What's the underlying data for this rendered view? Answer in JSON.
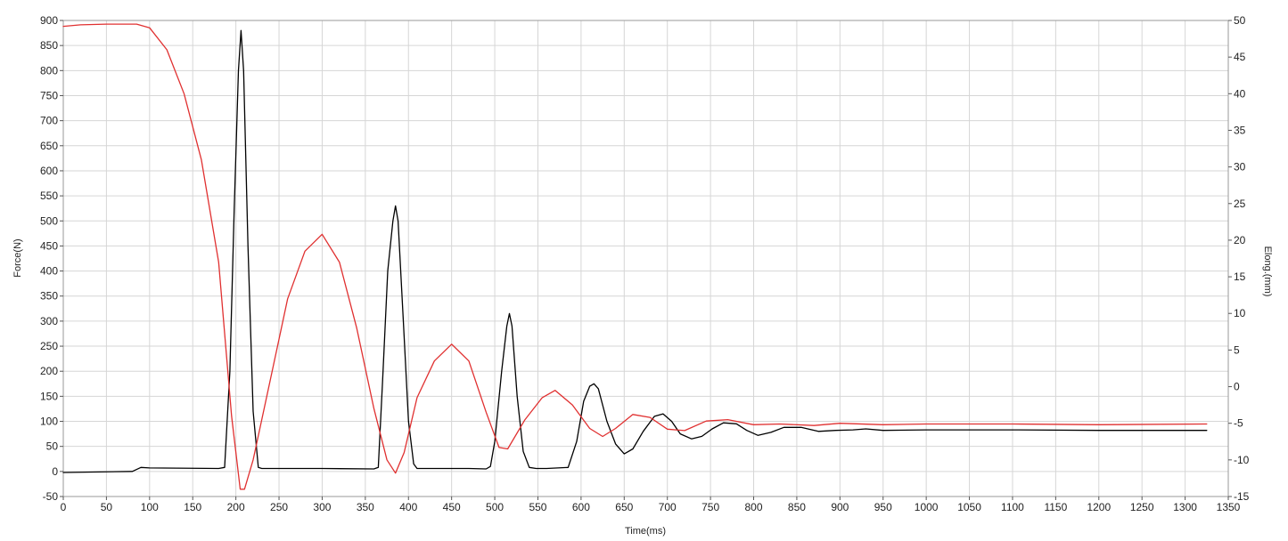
{
  "chart_data": {
    "type": "line",
    "title": "",
    "xlabel": "Time(ms)",
    "ylabel": "Force(N)",
    "y2label": "Elong.(mm)",
    "xlim": [
      0,
      1350
    ],
    "ylim": [
      -50,
      900
    ],
    "y2lim": [
      -15,
      50
    ],
    "x_ticks": [
      0,
      50,
      100,
      150,
      200,
      250,
      300,
      350,
      400,
      450,
      500,
      550,
      600,
      650,
      700,
      750,
      800,
      850,
      900,
      950,
      1000,
      1050,
      1100,
      1150,
      1200,
      1250,
      1300,
      1350
    ],
    "y_ticks": [
      -50,
      0,
      50,
      100,
      150,
      200,
      250,
      300,
      350,
      400,
      450,
      500,
      550,
      600,
      650,
      700,
      750,
      800,
      850,
      900
    ],
    "y2_ticks": [
      -15,
      -10,
      -5,
      0,
      5,
      10,
      15,
      20,
      25,
      30,
      35,
      40,
      45,
      50
    ],
    "grid": true,
    "legend": "none",
    "series": [
      {
        "axis": "left",
        "color": "#000000",
        "x": [
          0,
          80,
          90,
          100,
          180,
          187,
          193,
          198,
          203,
          206,
          209,
          214,
          220,
          226,
          230,
          300,
          360,
          365,
          370,
          376,
          382,
          385,
          388,
          394,
          400,
          406,
          410,
          470,
          490,
          495,
          500,
          508,
          514,
          517,
          520,
          526,
          533,
          540,
          548,
          560,
          585,
          595,
          603,
          610,
          615,
          620,
          630,
          640,
          650,
          660,
          672,
          685,
          695,
          705,
          715,
          728,
          740,
          752,
          765,
          780,
          792,
          805,
          820,
          835,
          855,
          875,
          895,
          915,
          930,
          950,
          1000,
          1100,
          1200,
          1325
        ],
        "y": [
          -2,
          0,
          8,
          7,
          6,
          8,
          200,
          520,
          800,
          880,
          800,
          450,
          120,
          8,
          6,
          6,
          5,
          8,
          180,
          400,
          500,
          530,
          500,
          300,
          100,
          15,
          6,
          6,
          5,
          10,
          60,
          200,
          290,
          315,
          290,
          150,
          40,
          8,
          6,
          6,
          8,
          60,
          140,
          170,
          175,
          165,
          100,
          55,
          35,
          45,
          80,
          110,
          115,
          100,
          75,
          65,
          70,
          85,
          97,
          95,
          82,
          72,
          78,
          88,
          88,
          80,
          82,
          83,
          85,
          82,
          83,
          83,
          82,
          82
        ]
      },
      {
        "axis": "right",
        "color": "#e03030",
        "x": [
          0,
          20,
          50,
          85,
          100,
          120,
          140,
          160,
          180,
          195,
          205,
          210,
          220,
          240,
          260,
          280,
          300,
          320,
          340,
          360,
          375,
          385,
          395,
          410,
          430,
          450,
          470,
          490,
          505,
          515,
          535,
          555,
          570,
          590,
          610,
          625,
          640,
          660,
          680,
          700,
          720,
          745,
          770,
          800,
          830,
          870,
          900,
          950,
          1000,
          1100,
          1200,
          1325
        ],
        "y": [
          49.2,
          49.4,
          49.5,
          49.5,
          49,
          46,
          40,
          31,
          17,
          -4,
          -14,
          -14,
          -10,
          1,
          12,
          18.5,
          20.8,
          17,
          8,
          -3,
          -10,
          -11.8,
          -9,
          -1.5,
          3.5,
          5.8,
          3.5,
          -3.5,
          -8.3,
          -8.5,
          -4.5,
          -1.5,
          -0.5,
          -2.5,
          -5.7,
          -6.8,
          -5.7,
          -3.8,
          -4.2,
          -5.8,
          -6,
          -4.7,
          -4.5,
          -5.2,
          -5.1,
          -5.3,
          -5,
          -5.2,
          -5.1,
          -5.1,
          -5.2,
          -5.1
        ]
      }
    ]
  }
}
